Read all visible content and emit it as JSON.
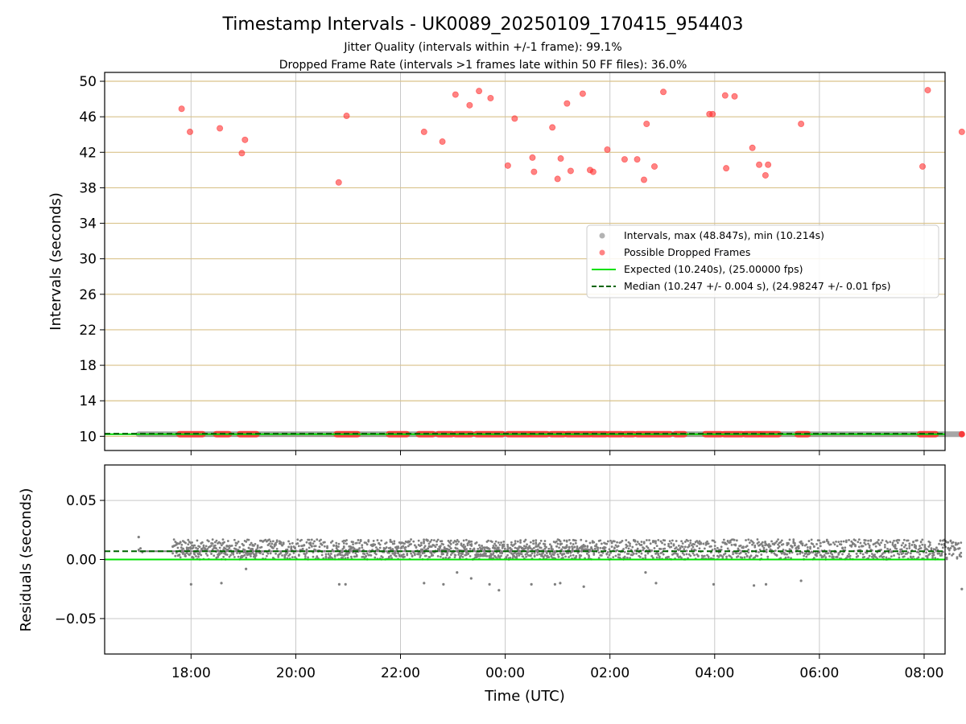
{
  "chart_data": [
    {
      "type": "scatter",
      "title": "Timestamp Intervals - UK0089_20250109_170415_954403",
      "subtitle_lines": [
        "Jitter Quality (intervals within +/-1 frame): 99.1%",
        "Dropped Frame Rate (intervals >1 frames late within 50 FF files): 36.0%"
      ],
      "xlabel": "",
      "ylabel": "Intervals (seconds)",
      "x_unit": "hours since 17:00 UTC",
      "xlim": [
        -0.65,
        15.4
      ],
      "ylim": [
        8.4,
        51.0
      ],
      "yticks": [
        10,
        14,
        18,
        22,
        26,
        30,
        34,
        38,
        42,
        46,
        50
      ],
      "x_grid_ticks": [
        1,
        3,
        5,
        7,
        9,
        11,
        13,
        15
      ],
      "grid": true,
      "horizontal_grid_color": "#d9c28a",
      "legend_position": "center-right",
      "legend": [
        {
          "label": "Intervals, max (48.847s), min (10.214s)",
          "marker": "circle",
          "color": "#808080"
        },
        {
          "label": "Possible Dropped Frames",
          "marker": "circle",
          "color": "#ff3030"
        },
        {
          "label": "Expected (10.240s), (25.00000 fps)",
          "marker": "line",
          "color": "#00e000"
        },
        {
          "label": "Median (10.247 +/- 0.004 s), (24.98247 +/- 0.01 fps)",
          "marker": "dashed-line",
          "color": "#006400"
        }
      ],
      "series": [
        {
          "name": "Possible Dropped Frames",
          "color": "#ff3030",
          "points": [
            [
              0.82,
              46.9
            ],
            [
              0.98,
              44.3
            ],
            [
              1.55,
              44.7
            ],
            [
              1.97,
              41.9
            ],
            [
              2.03,
              43.4
            ],
            [
              3.82,
              38.6
            ],
            [
              3.97,
              46.1
            ],
            [
              5.45,
              44.3
            ],
            [
              5.8,
              43.2
            ],
            [
              6.05,
              48.5
            ],
            [
              6.32,
              47.3
            ],
            [
              6.5,
              48.9
            ],
            [
              6.72,
              48.1
            ],
            [
              7.05,
              40.5
            ],
            [
              7.18,
              45.8
            ],
            [
              7.52,
              41.4
            ],
            [
              7.55,
              39.8
            ],
            [
              7.9,
              44.8
            ],
            [
              8.0,
              39.0
            ],
            [
              8.06,
              41.3
            ],
            [
              8.18,
              47.5
            ],
            [
              8.25,
              39.9
            ],
            [
              8.48,
              48.6
            ],
            [
              8.62,
              40.0
            ],
            [
              8.68,
              39.8
            ],
            [
              8.95,
              42.3
            ],
            [
              9.28,
              41.2
            ],
            [
              9.52,
              41.2
            ],
            [
              9.65,
              38.9
            ],
            [
              9.7,
              45.2
            ],
            [
              9.85,
              40.4
            ],
            [
              10.02,
              48.8
            ],
            [
              10.9,
              46.3
            ],
            [
              10.96,
              46.3
            ],
            [
              11.2,
              48.4
            ],
            [
              11.22,
              40.2
            ],
            [
              11.38,
              48.3
            ],
            [
              11.72,
              42.5
            ],
            [
              11.85,
              40.6
            ],
            [
              11.97,
              39.4
            ],
            [
              12.02,
              40.6
            ],
            [
              12.65,
              45.2
            ],
            [
              14.97,
              40.4
            ],
            [
              15.07,
              49.0
            ],
            [
              15.72,
              44.3
            ]
          ],
          "baseline_dropped_runs": [
            [
              0.78,
              1.22
            ],
            [
              1.48,
              1.72
            ],
            [
              1.93,
              2.25
            ],
            [
              3.78,
              4.18
            ],
            [
              4.78,
              5.12
            ],
            [
              5.35,
              5.62
            ],
            [
              5.72,
              5.98
            ],
            [
              6.05,
              6.35
            ],
            [
              6.45,
              6.95
            ],
            [
              7.05,
              7.45
            ],
            [
              7.48,
              7.8
            ],
            [
              7.88,
              8.12
            ],
            [
              8.18,
              8.62
            ],
            [
              8.66,
              8.92
            ],
            [
              8.98,
              9.22
            ],
            [
              9.28,
              9.45
            ],
            [
              9.52,
              10.15
            ],
            [
              10.25,
              10.42
            ],
            [
              10.82,
              11.12
            ],
            [
              11.18,
              11.52
            ],
            [
              11.58,
              11.85
            ],
            [
              11.88,
              12.22
            ],
            [
              12.58,
              12.78
            ],
            [
              14.92,
              15.22
            ],
            [
              15.72,
              15.72
            ]
          ]
        },
        {
          "name": "Intervals, max (48.847s), min (10.214s)",
          "color": "#808080",
          "baseline_y": 10.24,
          "baseline_x_range": [
            0.0,
            15.72
          ]
        },
        {
          "name": "Expected (10.240s), (25.00000 fps)",
          "color": "#00e000",
          "y": 10.24
        },
        {
          "name": "Median (10.247 +/- 0.004 s), (24.98247 +/- 0.01 fps)",
          "color": "#006400",
          "y": 10.247
        }
      ]
    },
    {
      "type": "scatter",
      "title": "",
      "xlabel": "Time (UTC)",
      "ylabel": "Residuals (seconds)",
      "x_unit": "hours since 17:00 UTC",
      "xlim": [
        -0.65,
        15.4
      ],
      "ylim": [
        -0.08,
        0.08
      ],
      "yticks": [
        0.05,
        0.0,
        -0.05
      ],
      "ytick_labels": [
        "0.05",
        "0.00",
        "−0.05"
      ],
      "xticks": [
        1,
        3,
        5,
        7,
        9,
        11,
        13,
        15
      ],
      "xtick_labels": [
        "18:00",
        "20:00",
        "22:00",
        "00:00",
        "02:00",
        "04:00",
        "06:00",
        "08:00"
      ],
      "grid": true,
      "expected_residual": 0.0,
      "median_residual": 0.007,
      "residual_band_dense": {
        "x_range": [
          0.65,
          15.72
        ],
        "y_range": [
          0.0,
          0.017
        ]
      },
      "residual_band_sparse": {
        "x_range": [
          0.0,
          8.65
        ],
        "y_range": [
          0.002,
          0.011
        ]
      },
      "outliers": [
        [
          0.0,
          0.019
        ],
        [
          1.0,
          -0.021
        ],
        [
          1.58,
          -0.02
        ],
        [
          2.05,
          -0.008
        ],
        [
          3.83,
          -0.021
        ],
        [
          3.95,
          -0.021
        ],
        [
          5.45,
          -0.02
        ],
        [
          5.82,
          -0.021
        ],
        [
          6.08,
          -0.011
        ],
        [
          6.35,
          -0.016
        ],
        [
          6.7,
          -0.021
        ],
        [
          6.88,
          -0.026
        ],
        [
          7.5,
          -0.021
        ],
        [
          7.95,
          -0.021
        ],
        [
          8.05,
          -0.02
        ],
        [
          8.5,
          -0.023
        ],
        [
          9.68,
          -0.011
        ],
        [
          9.88,
          -0.02
        ],
        [
          10.98,
          -0.021
        ],
        [
          11.75,
          -0.022
        ],
        [
          11.98,
          -0.021
        ],
        [
          12.65,
          -0.018
        ],
        [
          15.72,
          -0.025
        ]
      ]
    }
  ]
}
